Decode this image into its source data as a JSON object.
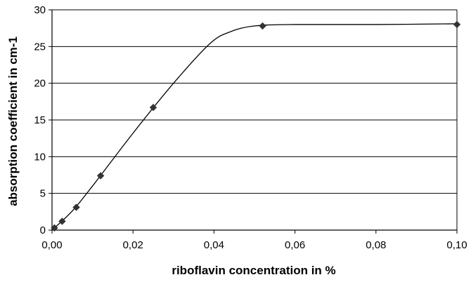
{
  "chart_data": {
    "type": "scatter",
    "title": "",
    "xlabel": "riboflavin concentration in %",
    "ylabel": "absorption coefficient in cm-1",
    "xlim": [
      0,
      0.1
    ],
    "ylim": [
      0,
      30
    ],
    "x_ticks": [
      "0,00",
      "0,02",
      "0,04",
      "0,06",
      "0,08",
      "0,10"
    ],
    "y_ticks": [
      "0",
      "5",
      "10",
      "15",
      "20",
      "25",
      "30"
    ],
    "grid": "horizontal",
    "legend": "none",
    "colors": {
      "marker": "#333333",
      "line": "#000000",
      "grid": "#000000"
    },
    "series": [
      {
        "marker": "diamond",
        "points": [
          {
            "x": 0.0006,
            "y": 0.3
          },
          {
            "x": 0.0025,
            "y": 1.2
          },
          {
            "x": 0.006,
            "y": 3.1
          },
          {
            "x": 0.012,
            "y": 7.4
          },
          {
            "x": 0.025,
            "y": 16.7
          },
          {
            "x": 0.052,
            "y": 27.8
          },
          {
            "x": 0.1,
            "y": 28.0
          }
        ]
      }
    ],
    "trendline": [
      {
        "x": 0.0,
        "y": 0.0
      },
      {
        "x": 0.005,
        "y": 2.6
      },
      {
        "x": 0.01,
        "y": 6.0
      },
      {
        "x": 0.02,
        "y": 13.2
      },
      {
        "x": 0.03,
        "y": 20.0
      },
      {
        "x": 0.039,
        "y": 25.4
      },
      {
        "x": 0.044,
        "y": 27.0
      },
      {
        "x": 0.05,
        "y": 27.8
      },
      {
        "x": 0.06,
        "y": 28.0
      },
      {
        "x": 0.08,
        "y": 28.0
      },
      {
        "x": 0.1,
        "y": 28.1
      }
    ]
  }
}
